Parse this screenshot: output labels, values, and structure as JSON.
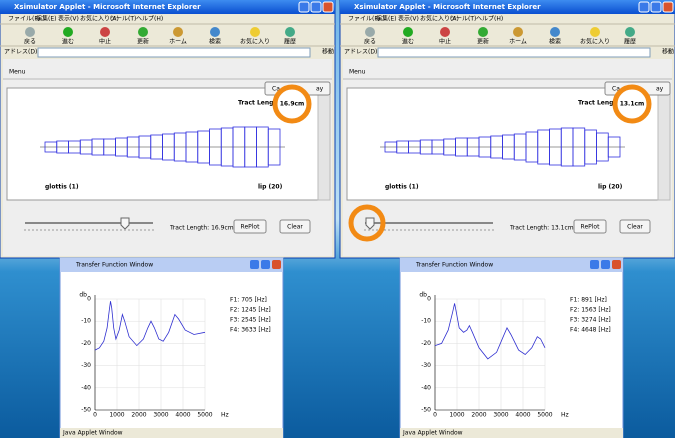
{
  "panels": [
    {
      "window_title": "Xsimulator Applet - Microsoft Internet Explorer",
      "menu": [
        "ファイル(F)",
        "編集(E)",
        "表示(V)",
        "お気に入り(A)",
        "ツール(T)",
        "ヘルプ(H)"
      ],
      "toolbar": [
        "戻る",
        "進む",
        "中止",
        "更新",
        "ホーム",
        "検索",
        "お気に入り",
        "履歴"
      ],
      "address_label": "アドレス(D)",
      "go_label": "移動",
      "applet_menu": "Menu",
      "button_start": "Ca",
      "button_end": "ay",
      "tract_label": "Tract Leng",
      "tract_value": "16.9cm",
      "tract_areas": [
        2.5,
        3,
        3,
        3.5,
        4,
        4,
        4.5,
        5,
        5.5,
        6,
        6.5,
        7,
        7.5,
        8,
        9,
        9.5,
        10,
        10,
        10,
        9
      ],
      "glottis_label": "glottis (1)",
      "lip_label": "lip (20)",
      "length_readout": "Tract Length: 16.9cm",
      "replot": "RePlot",
      "clear": "Clear",
      "transfer": {
        "title": "Transfer Function Window",
        "footer": "Java Applet Window",
        "chart_data": {
          "type": "line",
          "y_label": "db",
          "x_label": "Hz",
          "color": "#3030d0",
          "formants": [
            "F1: 705 [Hz]",
            "F2: 1245 [Hz]",
            "F3: 2545 [Hz]",
            "F4: 3633 [Hz]"
          ],
          "x": [
            0,
            200,
            400,
            550,
            650,
            705,
            760,
            850,
            950,
            1100,
            1245,
            1350,
            1550,
            1900,
            2200,
            2400,
            2545,
            2700,
            2900,
            3100,
            3350,
            3633,
            3800,
            4100,
            4500,
            5000
          ],
          "values": [
            -23,
            -22,
            -19,
            -13,
            -5,
            -1,
            -4,
            -13,
            -18,
            -14,
            -7,
            -10,
            -17,
            -21,
            -18,
            -13,
            -10,
            -13,
            -18,
            -19,
            -15,
            -7,
            -9,
            -14,
            -16,
            -15
          ],
          "xlim": [
            0,
            5000
          ],
          "xticks": [
            0,
            1000,
            2000,
            3000,
            4000,
            5000
          ],
          "ylim": [
            -50,
            0
          ],
          "yticks": [
            0,
            -10,
            -20,
            -30,
            -40,
            -50
          ],
          "grid": true
        }
      }
    },
    {
      "window_title": "Xsimulator Applet - Microsoft Internet Explorer",
      "menu": [
        "ファイル(F)",
        "編集(E)",
        "表示(V)",
        "お気に入り(A)",
        "ツール(T)",
        "ヘルプ(H)"
      ],
      "toolbar": [
        "戻る",
        "進む",
        "中止",
        "更新",
        "ホーム",
        "検索",
        "お気に入り",
        "履歴"
      ],
      "address_label": "アドレス(D)",
      "go_label": "移動",
      "applet_menu": "Menu",
      "button_start": "Ca",
      "button_end": "ay",
      "tract_label": "Tract Leng",
      "tract_value": "13.1cm",
      "tract_areas": [
        2.5,
        3,
        3,
        3.5,
        3.5,
        4,
        4.5,
        4.5,
        5,
        5.5,
        6,
        6.5,
        7.5,
        8.5,
        9,
        9.5,
        9.5,
        8.5,
        7,
        5
      ],
      "glottis_label": "glottis (1)",
      "lip_label": "lip (20)",
      "length_readout": "Tract Length: 13.1cm",
      "replot": "RePlot",
      "clear": "Clear",
      "transfer": {
        "title": "Transfer Function Window",
        "footer": "Java Applet Window",
        "chart_data": {
          "type": "line",
          "y_label": "db",
          "x_label": "Hz",
          "color": "#3030d0",
          "formants": [
            "F1: 891 [Hz]",
            "F2: 1563 [Hz]",
            "F3: 3274 [Hz]",
            "F4: 4648 [Hz]"
          ],
          "x": [
            0,
            300,
            600,
            800,
            891,
            950,
            1100,
            1300,
            1450,
            1563,
            1700,
            2000,
            2400,
            2800,
            3100,
            3274,
            3450,
            3800,
            4100,
            4400,
            4648,
            4800,
            5000
          ],
          "values": [
            -21,
            -20,
            -14,
            -6,
            -2,
            -5,
            -13,
            -15,
            -14,
            -12,
            -15,
            -22,
            -27,
            -24,
            -17,
            -13,
            -16,
            -23,
            -25,
            -22,
            -17,
            -18,
            -22
          ],
          "xlim": [
            0,
            5000
          ],
          "xticks": [
            0,
            1000,
            2000,
            3000,
            4000,
            5000
          ],
          "ylim": [
            -50,
            0
          ],
          "yticks": [
            0,
            -10,
            -20,
            -30,
            -40,
            -50
          ],
          "grid": true
        }
      }
    }
  ]
}
